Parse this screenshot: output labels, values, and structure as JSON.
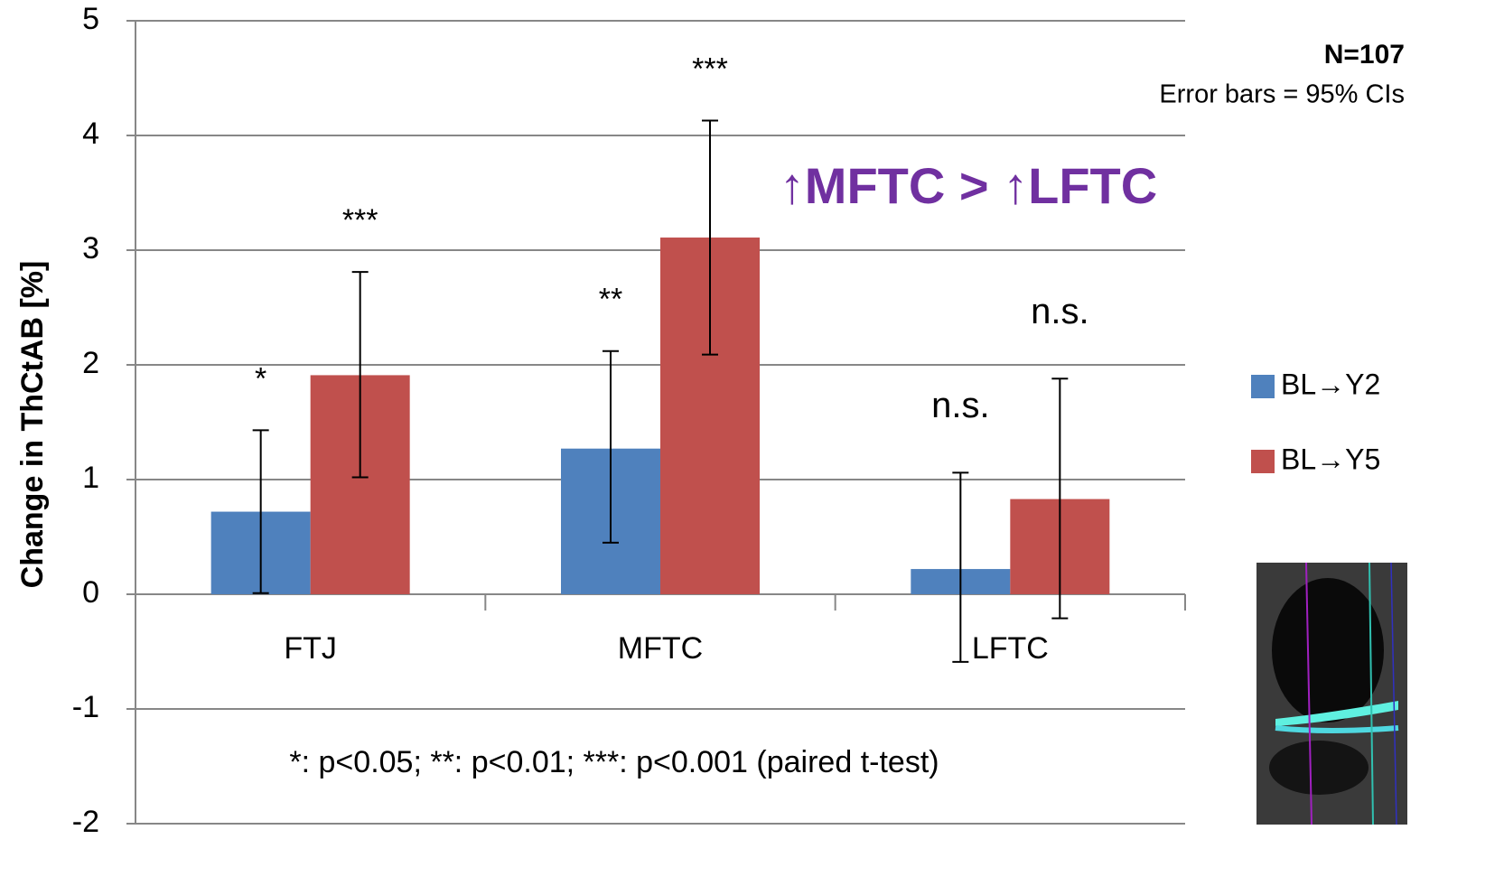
{
  "chart_data": {
    "type": "bar",
    "y_label": "Change in ThCtAB [%]",
    "categories": [
      "FTJ",
      "MFTC",
      "LFTC"
    ],
    "series": [
      {
        "name": "BL→Y2",
        "color": "#4f81bd",
        "values": [
          0.72,
          1.27,
          0.22
        ],
        "ci_low": [
          0.01,
          0.45,
          -0.59
        ],
        "ci_high": [
          1.43,
          2.12,
          1.06
        ],
        "significance": [
          "*",
          "**",
          "n.s."
        ]
      },
      {
        "name": "BL→Y5",
        "color": "#c0504d",
        "values": [
          1.91,
          3.11,
          0.83
        ],
        "ci_low": [
          1.02,
          2.09,
          -0.21
        ],
        "ci_high": [
          2.81,
          4.13,
          1.88
        ],
        "significance": [
          "***",
          "***",
          "n.s."
        ]
      }
    ],
    "ylim": [
      -2,
      5
    ],
    "yticks": [
      -2,
      -1,
      0,
      1,
      2,
      3,
      4,
      5
    ],
    "grid": true,
    "legend": "right",
    "sample_size": "N=107",
    "error_bar_note": "Error bars = 95% CIs",
    "highlight": "↑MFTC  > ↑LFTC",
    "footnote": "*: p<0.05; **: p<0.01; ***: p<0.001 (paired t-test)"
  }
}
